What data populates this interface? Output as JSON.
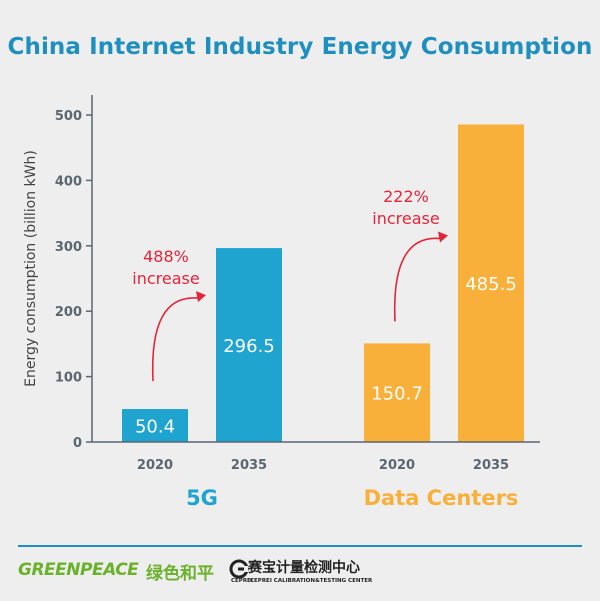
{
  "chart_data": {
    "type": "bar",
    "title": "China Internet Industry Energy Consumption",
    "ylabel": "Energy consumption (billion kWh)",
    "xlabel": "",
    "ylim": [
      0,
      500
    ],
    "yticks": [
      0,
      100,
      200,
      300,
      400,
      500
    ],
    "groups": [
      {
        "name": "5G",
        "color": "#1fa3cf",
        "categories": [
          "2020",
          "2035"
        ],
        "values": [
          50.4,
          296.5
        ],
        "value_labels": [
          "50.4",
          "296.5"
        ],
        "annotation": {
          "line1": "488%",
          "line2": "increase"
        }
      },
      {
        "name": "Data Centers",
        "color": "#f9b03a",
        "categories": [
          "2020",
          "2035"
        ],
        "values": [
          150.7,
          485.5
        ],
        "value_labels": [
          "150.7",
          "485.5"
        ],
        "annotation": {
          "line1": "222%",
          "line2": "increase"
        }
      }
    ],
    "annotation_color": "#e2263a",
    "axis_color": "#5a6670",
    "grid": false
  },
  "footer": {
    "greenpeace_logo": "GREENPEACE",
    "greenpeace_cn": "绿色和平",
    "ceprei_cn": "赛宝计量检测中心",
    "ceprei_abbr": "CEPREI",
    "ceprei_en": "CEPREI CALIBRATION&TESTING CENTER",
    "rule_color": "#1f8fbf"
  }
}
